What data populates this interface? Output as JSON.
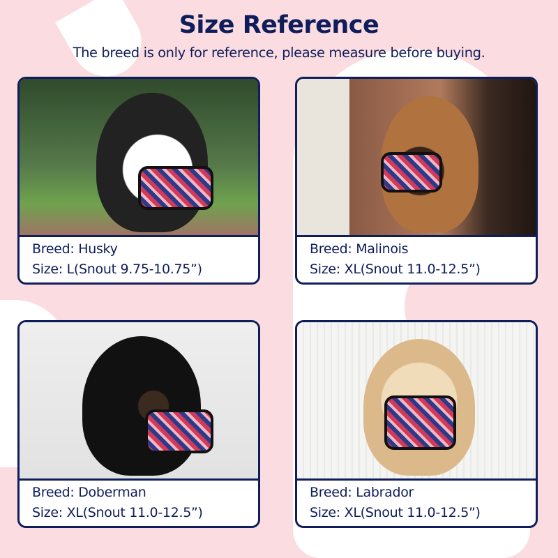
{
  "header": {
    "title": "Size Reference",
    "subtitle": "The breed is only for reference, please measure before buying."
  },
  "colors": {
    "navy": "#0f1d5a",
    "background_pink": "#fbdde1"
  },
  "cards": [
    {
      "breed": "Breed: Husky",
      "size": "Size: L(Snout 9.75-10.75”)"
    },
    {
      "breed": "Breed: Malinois",
      "size": "Size: XL(Snout 11.0-12.5”)"
    },
    {
      "breed": "Breed: Doberman",
      "size": "Size: XL(Snout 11.0-12.5”)"
    },
    {
      "breed": "Breed: Labrador",
      "size": "Size: XL(Snout 11.0-12.5”)"
    }
  ]
}
